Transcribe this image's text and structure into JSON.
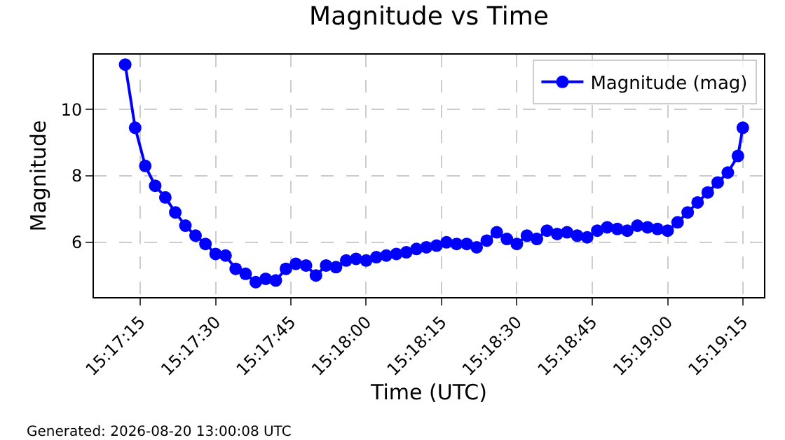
{
  "chart_data": {
    "type": "line",
    "title": "Magnitude vs Time",
    "xlabel": "Time (UTC)",
    "ylabel": "Magnitude",
    "x": [
      15.28667,
      15.28722,
      15.28778,
      15.28833,
      15.28889,
      15.28944,
      15.29,
      15.29056,
      15.29111,
      15.29167,
      15.29222,
      15.29278,
      15.29333,
      15.29389,
      15.29444,
      15.295,
      15.29556,
      15.29611,
      15.29667,
      15.29722,
      15.29778,
      15.29833,
      15.29889,
      15.29944,
      15.3,
      15.30056,
      15.30111,
      15.30167,
      15.30222,
      15.30278,
      15.30333,
      15.30389,
      15.30444,
      15.305,
      15.30556,
      15.30611,
      15.30667,
      15.30722,
      15.30778,
      15.30833,
      15.30889,
      15.30944,
      15.31,
      15.31056,
      15.31111,
      15.31167,
      15.31222,
      15.31278,
      15.31333,
      15.31389,
      15.31444,
      15.315,
      15.31556,
      15.31611,
      15.31667,
      15.31722,
      15.31778,
      15.31833,
      15.31889,
      15.31944,
      15.32,
      15.32056,
      15.32083
    ],
    "series": [
      {
        "name": "Magnitude (mag)",
        "color": "#0000ff",
        "values": [
          11.35,
          9.45,
          8.3,
          7.7,
          7.35,
          6.9,
          6.5,
          6.2,
          5.95,
          5.65,
          5.6,
          5.2,
          5.05,
          4.8,
          4.9,
          4.85,
          5.2,
          5.35,
          5.3,
          5.0,
          5.3,
          5.25,
          5.45,
          5.5,
          5.45,
          5.55,
          5.6,
          5.65,
          5.7,
          5.8,
          5.85,
          5.9,
          6.0,
          5.95,
          5.95,
          5.85,
          6.05,
          6.3,
          6.1,
          5.95,
          6.2,
          6.1,
          6.35,
          6.25,
          6.3,
          6.2,
          6.15,
          6.35,
          6.45,
          6.4,
          6.35,
          6.5,
          6.45,
          6.4,
          6.35,
          6.6,
          6.9,
          7.2,
          7.5,
          7.8,
          8.1,
          8.6,
          9.45
        ]
      }
    ],
    "xlim": [
      15.28494,
      15.322
    ],
    "xticks": [
      {
        "value": 15.2875,
        "label": "15:17:15"
      },
      {
        "value": 15.29167,
        "label": "15:17:30"
      },
      {
        "value": 15.29583,
        "label": "15:17:45"
      },
      {
        "value": 15.3,
        "label": "15:18:00"
      },
      {
        "value": 15.30417,
        "label": "15:18:15"
      },
      {
        "value": 15.30833,
        "label": "15:18:30"
      },
      {
        "value": 15.3125,
        "label": "15:18:45"
      },
      {
        "value": 15.31667,
        "label": "15:19:00"
      },
      {
        "value": 15.32083,
        "label": "15:19:15"
      }
    ],
    "ylim": [
      4.35,
      11.65
    ],
    "yticks": [
      6,
      8,
      10
    ],
    "grid": true,
    "legend": "top right",
    "marker": "circle",
    "line_style": "solid",
    "annotations": [
      "Generated: 2026-08-20 13:00:08 UTC"
    ]
  }
}
